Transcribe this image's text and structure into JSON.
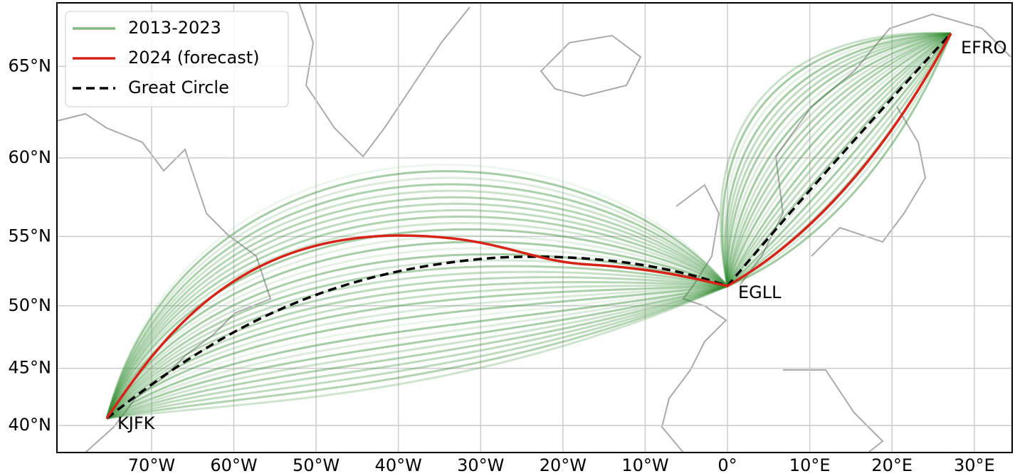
{
  "map": {
    "xlim": [
      -81.5,
      34.6
    ],
    "ylim": [
      37.5,
      68
    ],
    "xticks": [
      {
        "value": -70,
        "label": "70°W"
      },
      {
        "value": -60,
        "label": "60°W"
      },
      {
        "value": -50,
        "label": "50°W"
      },
      {
        "value": -40,
        "label": "40°W"
      },
      {
        "value": -30,
        "label": "30°W"
      },
      {
        "value": -20,
        "label": "20°W"
      },
      {
        "value": -10,
        "label": "10°W"
      },
      {
        "value": 0,
        "label": "0°"
      },
      {
        "value": 10,
        "label": "10°E"
      },
      {
        "value": 20,
        "label": "20°E"
      },
      {
        "value": 30,
        "label": "30°E"
      }
    ],
    "yticks": [
      {
        "value": 40,
        "label": "40°N"
      },
      {
        "value": 45,
        "label": "45°N"
      },
      {
        "value": 50,
        "label": "50°N"
      },
      {
        "value": 55,
        "label": "55°N"
      },
      {
        "value": 60,
        "label": "60°N"
      },
      {
        "value": 65,
        "label": "65°N"
      }
    ],
    "grid": true,
    "legend": [
      {
        "name": "2013-2023",
        "color": "#2e8b2e",
        "style": "solid"
      },
      {
        "name": "2024 (forecast)",
        "color": "#d62418",
        "style": "solid"
      },
      {
        "name": "Great Circle",
        "color": "#000000",
        "style": "dashed"
      }
    ],
    "airports": [
      "KJFK",
      "EGLL",
      "EFRO"
    ]
  }
}
